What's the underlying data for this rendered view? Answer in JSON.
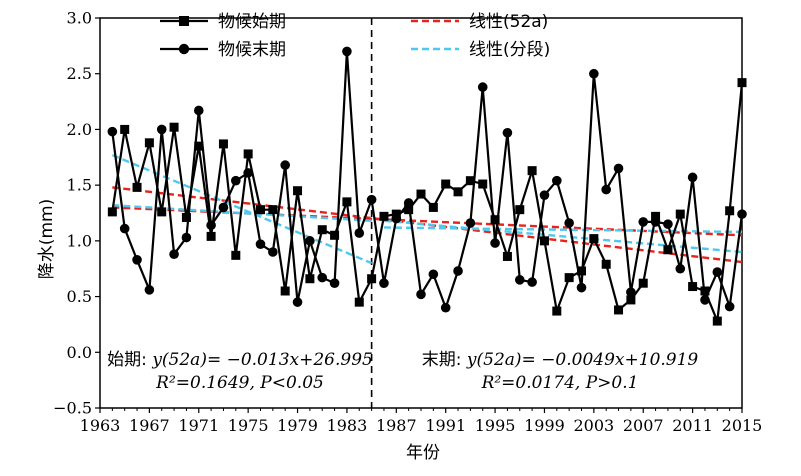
{
  "chart_data": {
    "type": "line",
    "xlabel": "年份",
    "ylabel": "降水(mm)",
    "xlim": [
      1963,
      2015
    ],
    "ylim": [
      -0.5,
      3.0
    ],
    "x_ticks": [
      "1963",
      "1967",
      "1971",
      "1975",
      "1979",
      "1983",
      "1987",
      "1991",
      "1995",
      "1999",
      "2003",
      "2007",
      "2011",
      "2015"
    ],
    "y_ticks": [
      "−0.5",
      "0.0",
      "0.5",
      "1.0",
      "1.5",
      "2.0",
      "2.5",
      "3.0"
    ],
    "x": [
      1964,
      1965,
      1966,
      1967,
      1968,
      1969,
      1970,
      1971,
      1972,
      1973,
      1974,
      1975,
      1976,
      1977,
      1978,
      1979,
      1980,
      1981,
      1982,
      1983,
      1984,
      1985,
      1986,
      1987,
      1988,
      1989,
      1990,
      1991,
      1992,
      1993,
      1994,
      1995,
      1996,
      1997,
      1998,
      1999,
      2000,
      2001,
      2002,
      2003,
      2004,
      2005,
      2006,
      2007,
      2008,
      2009,
      2010,
      2011,
      2012,
      2013,
      2014,
      2015
    ],
    "series": [
      {
        "name": "物候始期",
        "marker": "square",
        "values": [
          1.26,
          2.0,
          1.48,
          1.88,
          1.26,
          2.02,
          1.21,
          1.85,
          1.04,
          1.87,
          0.87,
          1.78,
          1.28,
          1.28,
          0.55,
          1.45,
          0.66,
          1.1,
          1.05,
          1.35,
          0.45,
          0.66,
          1.22,
          1.24,
          1.28,
          1.42,
          1.3,
          1.51,
          1.44,
          1.54,
          1.51,
          1.19,
          0.86,
          1.28,
          1.63,
          1.0,
          0.37,
          0.67,
          0.73,
          1.02,
          0.79,
          0.38,
          0.47,
          0.62,
          1.22,
          0.92,
          1.24,
          0.59,
          0.55,
          0.28,
          1.27,
          2.42
        ]
      },
      {
        "name": "物候末期",
        "marker": "circle",
        "values": [
          1.98,
          1.11,
          0.83,
          0.56,
          2.0,
          0.88,
          1.03,
          2.17,
          1.14,
          1.3,
          1.54,
          1.61,
          0.97,
          0.9,
          1.68,
          0.45,
          1.0,
          0.67,
          0.62,
          2.7,
          1.07,
          1.37,
          0.62,
          1.2,
          1.34,
          0.52,
          0.7,
          0.4,
          0.73,
          1.16,
          2.38,
          0.98,
          1.97,
          0.65,
          0.63,
          1.41,
          1.54,
          1.16,
          0.58,
          2.5,
          1.46,
          1.65,
          0.54,
          1.17,
          1.17,
          1.15,
          0.75,
          1.57,
          0.47,
          0.72,
          0.41,
          1.24
        ]
      }
    ],
    "trend_lines": [
      {
        "name": "线性(52a)",
        "color": "#e8231e",
        "segments": [
          {
            "x": [
              1964,
              2015
            ],
            "y": [
              1.48,
              0.81
            ]
          },
          {
            "x": [
              1964,
              2015
            ],
            "y": [
              1.3,
              1.05
            ]
          }
        ]
      },
      {
        "name": "线性(分段)",
        "color": "#4fc8ee",
        "segments": [
          {
            "x": [
              1964,
              1985
            ],
            "y": [
              1.77,
              0.8
            ]
          },
          {
            "x": [
              1964,
              1985
            ],
            "y": [
              1.32,
              1.18
            ]
          },
          {
            "x": [
              1986,
              2015
            ],
            "y": [
              1.18,
              0.9
            ]
          },
          {
            "x": [
              1986,
              2015
            ],
            "y": [
              1.12,
              1.08
            ]
          }
        ]
      }
    ],
    "divider_year": 1985,
    "legend": [
      "物候始期",
      "物候末期",
      "线性(52a)",
      "线性(分段)"
    ],
    "legend_position": "top",
    "grid": false
  },
  "annotations": {
    "left_line1_prefix": "始期: ",
    "left_line1_eq": "y(52a)= −0.013x+26.995",
    "left_line2": "R²=0.1649, P<0.05",
    "right_line1_prefix": "末期: ",
    "right_line1_eq": "y(52a)= −0.0049x+10.919",
    "right_line2": "R²=0.0174, P>0.1"
  }
}
